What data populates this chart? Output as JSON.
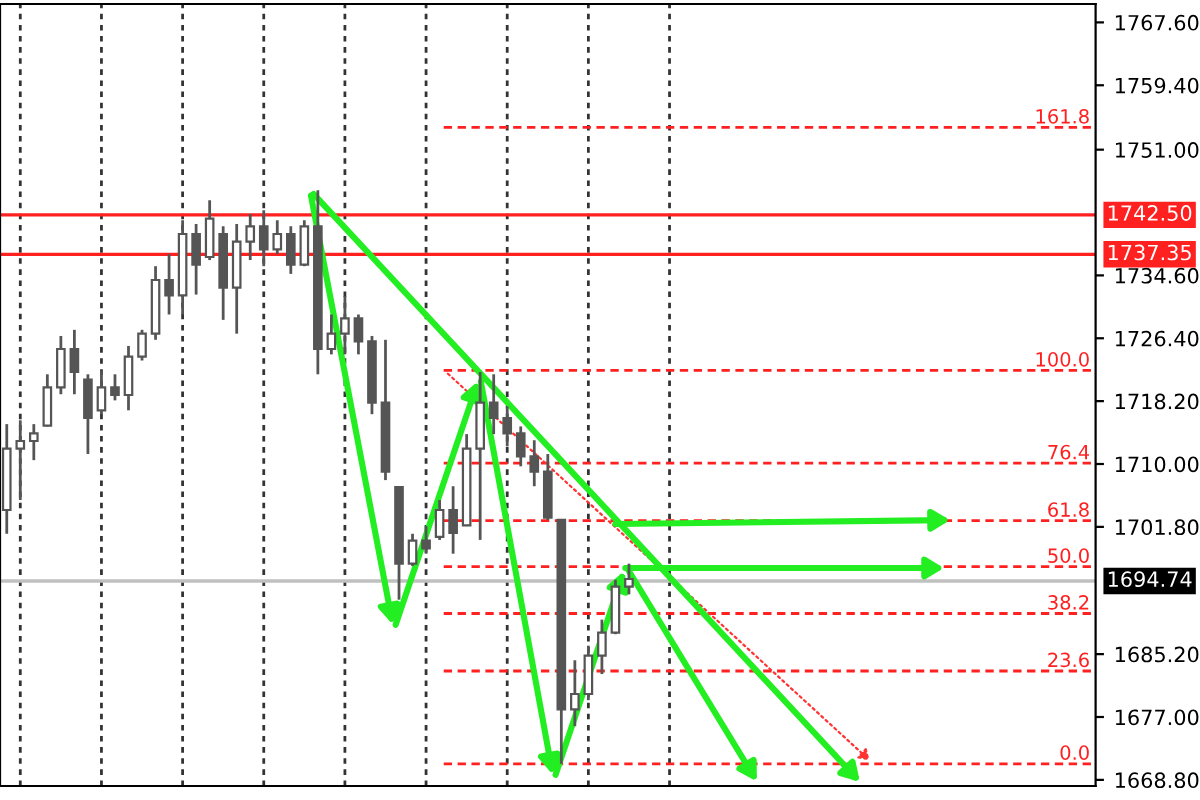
{
  "chart_data": {
    "type": "candlestick",
    "color": "#555555",
    "categories": [
      null,
      null,
      null,
      null,
      null,
      null,
      null,
      null,
      null,
      null,
      null,
      null,
      null,
      null,
      null,
      null,
      null,
      null,
      null,
      null,
      null,
      null,
      null,
      null,
      null,
      null,
      null,
      null,
      null,
      null,
      null,
      null,
      null,
      null,
      null,
      null,
      null,
      null,
      null,
      null,
      null,
      null,
      null,
      null,
      null,
      null,
      null,
      null,
      null,
      null,
      null,
      null,
      null,
      null,
      null,
      null,
      null,
      null,
      null,
      null,
      null,
      null,
      null,
      null,
      null,
      null,
      null,
      null,
      null,
      null,
      null,
      null,
      null,
      null,
      null,
      null,
      null,
      null,
      null,
      null,
      null
    ],
    "ohlc": [
      [
        1704,
        1715.2,
        1700.9,
        1712
      ],
      [
        1712,
        1715.7,
        1705.3,
        1713
      ],
      [
        1713,
        1715.2,
        1710.5,
        1714
      ],
      [
        1715,
        1721.7,
        1714.9,
        1720
      ],
      [
        1720,
        1726.7,
        1719.1,
        1725
      ],
      [
        1725,
        1727.5,
        1719.1,
        1722
      ],
      [
        1721,
        1721.7,
        1711.3,
        1716
      ],
      [
        1717,
        1722.2,
        1716.5,
        1720
      ],
      [
        1720,
        1721.7,
        1718.3,
        1719
      ],
      [
        1719,
        1725.4,
        1717.0,
        1724
      ],
      [
        1724,
        1727.5,
        1723.5,
        1727
      ],
      [
        1727,
        1735.8,
        1726.2,
        1734
      ],
      [
        1734,
        1737.4,
        1729.5,
        1732
      ],
      [
        1732,
        1741.8,
        1729.5,
        1740
      ],
      [
        1740,
        1741.3,
        1732.1,
        1736
      ],
      [
        1737,
        1744.4,
        1736.6,
        1742
      ],
      [
        1740,
        1741.0,
        1728.8,
        1733
      ],
      [
        1733,
        1741.3,
        1727.0,
        1739
      ],
      [
        1739,
        1742.6,
        1736.6,
        1741
      ],
      [
        1741,
        1743.1,
        1735.8,
        1738
      ],
      [
        1738,
        1741.8,
        1737.4,
        1740
      ],
      [
        1740,
        1741.0,
        1734.8,
        1736
      ],
      [
        1736,
        1741.8,
        1735.8,
        1741
      ],
      [
        1741,
        1745.7,
        1721.7,
        1725
      ],
      [
        1725,
        1729.5,
        1724.3,
        1727
      ],
      [
        1727,
        1731.9,
        1724.3,
        1729
      ],
      [
        1729,
        1729.5,
        1724.3,
        1726
      ],
      [
        1726,
        1726.7,
        1716.5,
        1718
      ],
      [
        1718,
        1726.2,
        1707.9,
        1709
      ],
      [
        1707,
        1707.1,
        1692.3,
        1697
      ],
      [
        1697,
        1700.9,
        1696.7,
        1700
      ],
      [
        1700,
        1701.9,
        1698.3,
        1699
      ],
      [
        1700.5,
        1705.3,
        1700.1,
        1704
      ],
      [
        1704,
        1707.1,
        1698.3,
        1701
      ],
      [
        1702,
        1713.9,
        1701.9,
        1712
      ],
      [
        1712,
        1722.0,
        1700.1,
        1718
      ],
      [
        1718,
        1721.7,
        1713.9,
        1716
      ],
      [
        1716,
        1717.5,
        1712.3,
        1714
      ],
      [
        1714,
        1714.9,
        1709.7,
        1711
      ],
      [
        1711,
        1713.1,
        1707.1,
        1709
      ],
      [
        1709,
        1711.3,
        1702.7,
        1703
      ],
      [
        1702.7,
        1702.7,
        1670.9,
        1678
      ],
      [
        1678,
        1684.4,
        1675.8,
        1680
      ],
      [
        1680,
        1686.3,
        1679.2,
        1685
      ],
      [
        1685,
        1689.7,
        1682.6,
        1688
      ],
      [
        1688,
        1694.9,
        1687.8,
        1694
      ],
      [
        1694,
        1697.0,
        1693.0,
        1695
      ],
      null,
      null,
      null,
      null,
      null,
      null,
      null,
      null,
      null,
      null,
      null,
      null,
      null,
      null,
      null,
      null,
      null,
      null,
      null,
      null,
      null,
      null,
      null,
      null,
      null,
      null,
      null,
      null,
      null,
      null,
      null,
      null,
      null,
      null
    ],
    "ylim": [
      1668.0,
      1770.0
    ],
    "yticks": [
      {
        "value": 1767.6,
        "label": "1767.60"
      },
      {
        "value": 1759.4,
        "label": "1759.40"
      },
      {
        "value": 1751.0,
        "label": "1751.00"
      },
      {
        "value": 1734.6,
        "label": "1734.60"
      },
      {
        "value": 1726.4,
        "label": "1726.40"
      },
      {
        "value": 1718.2,
        "label": "1718.20"
      },
      {
        "value": 1710.0,
        "label": "1710.00"
      },
      {
        "value": 1701.8,
        "label": "1701.80"
      },
      {
        "value": 1685.2,
        "label": "1685.20"
      },
      {
        "value": 1677.0,
        "label": "1677.00"
      },
      {
        "value": 1668.8,
        "label": "1668.80"
      }
    ],
    "annotations": [
      {
        "text": "161.8",
        "y": 1753.9
      },
      {
        "text": "100.0",
        "y": 1722.2
      },
      {
        "text": "76.4",
        "y": 1710.1
      },
      {
        "text": "61.8",
        "y": 1702.6
      },
      {
        "text": "50.0",
        "y": 1696.6
      },
      {
        "text": "38.2",
        "y": 1690.5
      },
      {
        "text": "23.6",
        "y": 1683.0
      },
      {
        "text": "0.0",
        "y": 1670.9
      }
    ],
    "ref_lines": [
      {
        "axis": "y",
        "value": 1742.5,
        "label": "1742.50",
        "color": "#ff2020",
        "line_style": "solid"
      },
      {
        "axis": "y",
        "value": 1737.35,
        "label": "1737.35",
        "color": "#ff2020",
        "line_style": "solid"
      },
      {
        "axis": "y",
        "value": 1694.74,
        "label": "1694.74",
        "color": "#c0c0c0",
        "line_style": "solid"
      },
      {
        "axis": "y",
        "value": 1753.9,
        "color": "#ff2020",
        "line_style": "dashed"
      },
      {
        "axis": "y",
        "value": 1722.2,
        "color": "#ff2020",
        "line_style": "dashed"
      },
      {
        "axis": "y",
        "value": 1710.1,
        "color": "#ff2020",
        "line_style": "dashed"
      },
      {
        "axis": "y",
        "value": 1702.6,
        "color": "#ff2020",
        "line_style": "dashed"
      },
      {
        "axis": "y",
        "value": 1696.6,
        "color": "#ff2020",
        "line_style": "dashed"
      },
      {
        "axis": "y",
        "value": 1690.5,
        "color": "#ff2020",
        "line_style": "dashed"
      },
      {
        "axis": "y",
        "value": 1683.0,
        "color": "#ff2020",
        "line_style": "dashed"
      },
      {
        "axis": "y",
        "value": 1670.9,
        "color": "#ff2020",
        "line_style": "dashed"
      }
    ],
    "grid": "x",
    "tick_labels": "y"
  }
}
